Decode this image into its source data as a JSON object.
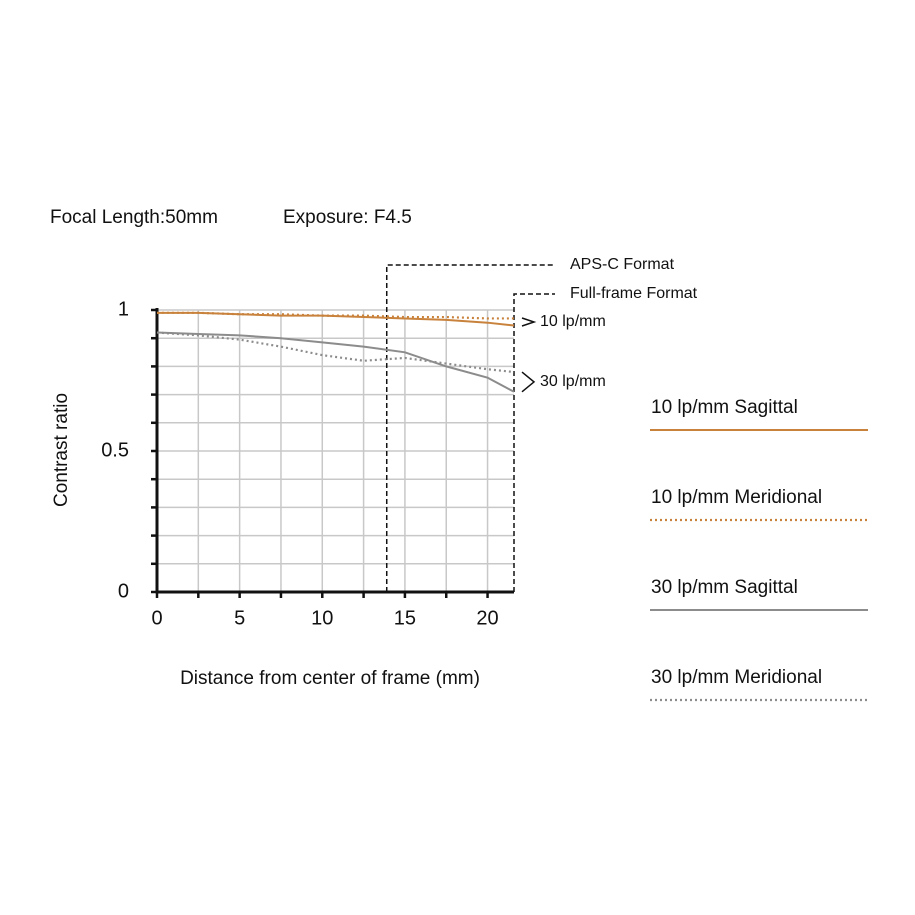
{
  "chart_data": {
    "type": "line",
    "title": "Focal Length:50mm",
    "subtitle": "Exposure: F4.5",
    "x_label": "Distance from center of frame (mm)",
    "y_label": "Contrast ratio",
    "x": [
      0,
      2.5,
      5,
      7.5,
      10,
      12.5,
      15,
      17.5,
      20,
      21.6
    ],
    "series": [
      {
        "name": "10 lp/mm Sagittal",
        "color": "#c8823c",
        "dash": "solid",
        "values": [
          0.99,
          0.99,
          0.985,
          0.98,
          0.98,
          0.975,
          0.97,
          0.965,
          0.955,
          0.945
        ]
      },
      {
        "name": "10 lp/mm Meridional",
        "color": "#c8823c",
        "dash": "dotted",
        "values": [
          0.99,
          0.99,
          0.985,
          0.985,
          0.98,
          0.98,
          0.975,
          0.975,
          0.97,
          0.97
        ]
      },
      {
        "name": "30 lp/mm Sagittal",
        "color": "#8c8c8c",
        "dash": "solid",
        "values": [
          0.92,
          0.915,
          0.91,
          0.9,
          0.885,
          0.87,
          0.85,
          0.8,
          0.76,
          0.71
        ]
      },
      {
        "name": "30 lp/mm Meridional",
        "color": "#8c8c8c",
        "dash": "dotted",
        "values": [
          0.92,
          0.91,
          0.895,
          0.87,
          0.84,
          0.82,
          0.83,
          0.81,
          0.79,
          0.78
        ]
      }
    ],
    "curve_labels": [
      "10 lp/mm",
      "30 lp/mm"
    ],
    "frame_lines": [
      {
        "label": "APS-C Format",
        "x": 13.9
      },
      {
        "label": "Full-frame Format",
        "x": 21.6
      }
    ],
    "xlim": [
      0,
      21.6
    ],
    "ylim": [
      0,
      1
    ],
    "xticks": [
      0,
      5,
      10,
      15,
      20
    ],
    "x_minor_ticks": [
      2.5,
      7.5,
      12.5,
      17.5
    ],
    "yticks": [
      0,
      0.5,
      1
    ],
    "y_minor_ticks": [
      0.1,
      0.2,
      0.3,
      0.4,
      0.6,
      0.7,
      0.8,
      0.9
    ],
    "grid": true,
    "legend": "right"
  }
}
